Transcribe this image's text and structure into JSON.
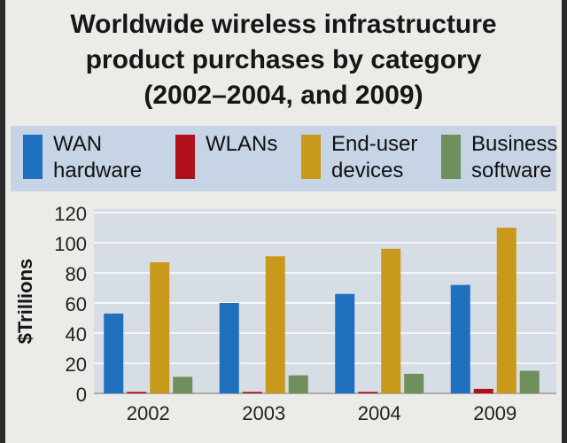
{
  "title_lines": [
    "Worldwide wireless infrastructure",
    "product purchases by category",
    "(2002–2004, and 2009)"
  ],
  "legend": [
    {
      "lines": [
        "WAN",
        "hardware"
      ],
      "color": "#1f6fbf"
    },
    {
      "lines": [
        "WLANs"
      ],
      "color": "#b0101a"
    },
    {
      "lines": [
        "End-user",
        "devices"
      ],
      "color": "#c8991a"
    },
    {
      "lines": [
        "Business",
        "software"
      ],
      "color": "#6f8f5c"
    }
  ],
  "chart_data": {
    "type": "bar",
    "categories": [
      "2002",
      "2003",
      "2004",
      "2009"
    ],
    "series": [
      {
        "name": "WAN hardware",
        "values": [
          53,
          60,
          66,
          72
        ],
        "color": "#1f6fbf"
      },
      {
        "name": "WLANs",
        "values": [
          1,
          1,
          1,
          3
        ],
        "color": "#b0101a"
      },
      {
        "name": "End-user devices",
        "values": [
          87,
          91,
          96,
          110
        ],
        "color": "#c8991a"
      },
      {
        "name": "Business software",
        "values": [
          11,
          12,
          13,
          15
        ],
        "color": "#6f8f5c"
      }
    ],
    "ylabel": "$Trillions",
    "ylim": [
      0,
      120
    ],
    "yticks": [
      0,
      20,
      40,
      60,
      80,
      100,
      120
    ],
    "grid": true,
    "legend_position": "top"
  }
}
